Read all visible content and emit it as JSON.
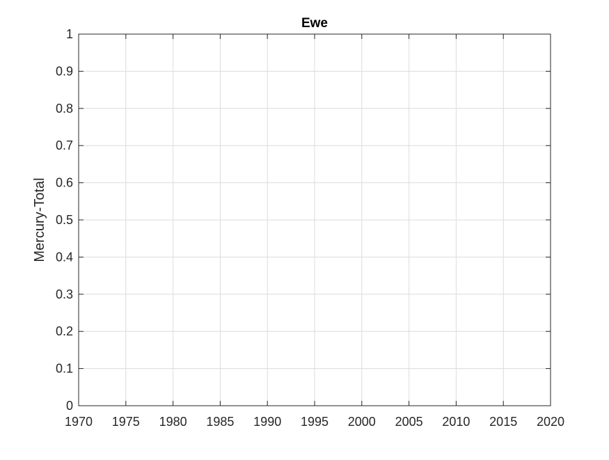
{
  "chart_data": {
    "type": "line",
    "title": "Ewe",
    "xlabel": "",
    "ylabel": "Mercury-Total",
    "xlim": [
      1970,
      2020
    ],
    "ylim": [
      0,
      1
    ],
    "xticks": [
      1970,
      1975,
      1980,
      1985,
      1990,
      1995,
      2000,
      2005,
      2010,
      2015,
      2020
    ],
    "yticks": [
      0,
      0.1,
      0.2,
      0.3,
      0.4,
      0.5,
      0.6,
      0.7,
      0.8,
      0.9,
      1
    ],
    "xtick_labels": [
      "1970",
      "1975",
      "1980",
      "1985",
      "1990",
      "1995",
      "2000",
      "2005",
      "2010",
      "2015",
      "2020"
    ],
    "ytick_labels": [
      "0",
      "0.1",
      "0.2",
      "0.3",
      "0.4",
      "0.5",
      "0.6",
      "0.7",
      "0.8",
      "0.9",
      "1"
    ],
    "grid": true,
    "series": [],
    "colors": {
      "axis": "#262626",
      "grid": "#dcdcdc",
      "background": "#ffffff"
    }
  }
}
